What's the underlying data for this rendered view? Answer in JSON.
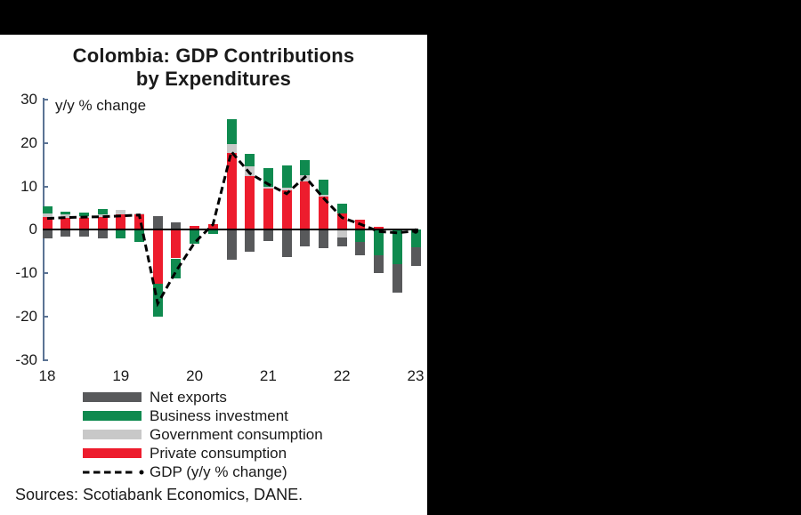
{
  "page": {
    "background": "#000000",
    "panel_background": "#ffffff"
  },
  "chart": {
    "title_line1": "Colombia: GDP Contributions",
    "title_line2": "by Expenditures",
    "annotation": "y/y % change",
    "sources": "Sources: Scotiabank Economics, DANE.",
    "axis_color": "#5b7394",
    "zero_line_color": "#000000"
  },
  "chart_data": {
    "type": "bar",
    "subtype": "stacked-bars-with-dashed-line",
    "title": "Colombia: GDP Contributions by Expenditures",
    "ylabel": "y/y % change",
    "ylim": [
      -30,
      30
    ],
    "yticks": [
      30,
      20,
      10,
      0,
      -10,
      -20,
      -30
    ],
    "x_tick_labels": [
      "18",
      "19",
      "20",
      "21",
      "22",
      "23"
    ],
    "bars_per_year": 4,
    "bar_count": 21,
    "series": [
      {
        "name": "Private consumption",
        "key": "private-consumption",
        "color": "#ed1c2d",
        "values": [
          2.9,
          2.8,
          2.8,
          3.0,
          3.6,
          3.5,
          -12.5,
          -6.6,
          0.9,
          1.4,
          17.6,
          12.3,
          9.6,
          9.0,
          11.1,
          7.6,
          3.7,
          2.3,
          0.7,
          0,
          0
        ]
      },
      {
        "name": "Government consumption",
        "key": "government-consumption",
        "color": "#c8c8c8",
        "values": [
          0.8,
          0.7,
          0.4,
          0.6,
          0.9,
          0.3,
          0,
          0,
          0,
          0,
          2.1,
          2.4,
          0.4,
          0.7,
          1.4,
          0.5,
          -1.8,
          0,
          0,
          0,
          0
        ]
      },
      {
        "name": "Business investment",
        "key": "business-investment",
        "color": "#0f8a4f",
        "values": [
          1.6,
          0.7,
          0.7,
          1.2,
          -1.9,
          -2.8,
          -7.5,
          -4.5,
          -3.3,
          -1.0,
          5.7,
          2.7,
          4.3,
          5.2,
          3.5,
          3.5,
          2.4,
          -2.8,
          -5.9,
          -7.9,
          -4.1
        ]
      },
      {
        "name": "Net exports",
        "key": "net-exports",
        "color": "#58595b",
        "values": [
          -2.0,
          -1.5,
          -1.5,
          -2.0,
          0,
          0,
          3.1,
          1.8,
          0,
          0,
          -7.0,
          -5.1,
          -2.6,
          -6.3,
          -3.9,
          -4.2,
          -2.0,
          -3.1,
          -4.1,
          -6.5,
          -4.2
        ]
      }
    ],
    "line": {
      "name": "GDP (y/y % change)",
      "color": "#000000",
      "style": "dashed",
      "values": [
        2.6,
        2.8,
        2.9,
        3.0,
        3.2,
        3.4,
        -17.0,
        -9.5,
        -3.0,
        1.2,
        18.0,
        13.0,
        10.5,
        8.3,
        12.2,
        7.3,
        2.8,
        1.3,
        -0.4,
        -0.7,
        -0.3
      ]
    },
    "legend_position": "bottom",
    "grid": false
  },
  "legend": {
    "items": [
      {
        "label": "Net exports",
        "color": "#58595b",
        "type": "box"
      },
      {
        "label": "Business investment",
        "color": "#0f8a4f",
        "type": "box"
      },
      {
        "label": "Government consumption",
        "color": "#c8c8c8",
        "type": "box"
      },
      {
        "label": "Private consumption",
        "color": "#ed1c2d",
        "type": "box"
      },
      {
        "label": "GDP (y/y % change)",
        "color": "#000000",
        "type": "dashed-line"
      }
    ]
  }
}
